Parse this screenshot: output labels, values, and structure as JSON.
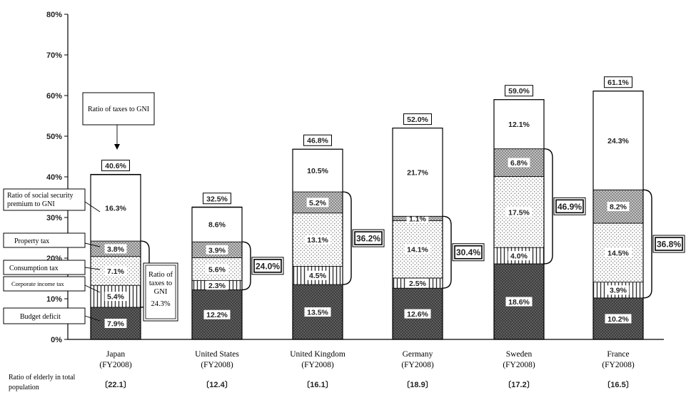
{
  "chart_data": {
    "type": "bar",
    "stacked": true,
    "y_ticks": [
      "0%",
      "10%",
      "20%",
      "30%",
      "40%",
      "50%",
      "60%",
      "70%",
      "80%"
    ],
    "ylim": [
      0,
      80
    ],
    "grid": false,
    "categories": [
      {
        "name": "Japan",
        "fy": "(FY2008)",
        "elderly": "〔22.1〕",
        "total": 40.6,
        "total_label": "40.6%",
        "tax_ratio": 24.3,
        "tax_label": "",
        "values": [
          7.9,
          5.4,
          7.1,
          3.8,
          16.3
        ]
      },
      {
        "name": "United States",
        "fy": "(FY2008)",
        "elderly": "〔12.4〕",
        "total": 32.5,
        "total_label": "32.5%",
        "tax_ratio": 24.0,
        "tax_label": "24.0%",
        "values": [
          12.2,
          2.3,
          5.6,
          3.9,
          8.6
        ]
      },
      {
        "name": "United Kingdom",
        "fy": "(FY2008)",
        "elderly": "〔16.1〕",
        "total": 46.8,
        "total_label": "46.8%",
        "tax_ratio": 36.2,
        "tax_label": "36.2%",
        "values": [
          13.5,
          4.5,
          13.1,
          5.2,
          10.5
        ]
      },
      {
        "name": "Germany",
        "fy": "(FY2008)",
        "elderly": "〔18.9〕",
        "total": 52.0,
        "total_label": "52.0%",
        "tax_ratio": 30.4,
        "tax_label": "30.4%",
        "values": [
          12.6,
          2.5,
          14.1,
          1.1,
          21.7
        ]
      },
      {
        "name": "Sweden",
        "fy": "(FY2008)",
        "elderly": "〔17.2〕",
        "total": 59.0,
        "total_label": "59.0%",
        "tax_ratio": 46.9,
        "tax_label": "46.9%",
        "values": [
          18.6,
          4.0,
          17.5,
          6.8,
          12.1
        ]
      },
      {
        "name": "France",
        "fy": "(FY2008)",
        "elderly": "〔16.5〕",
        "total": 61.1,
        "total_label": "61.1%",
        "tax_ratio": 36.8,
        "tax_label": "36.8%",
        "values": [
          10.2,
          3.9,
          14.5,
          8.2,
          24.3
        ]
      }
    ],
    "series": [
      {
        "name": "Budget deficit",
        "pattern": "crosshatch-dark"
      },
      {
        "name": "Corporate income tax",
        "pattern": "vertical-lines"
      },
      {
        "name": "Consumption tax",
        "pattern": "dots"
      },
      {
        "name": "Property tax",
        "pattern": "crosshatch-light"
      },
      {
        "name": "Ratio of social security premium to GNI",
        "pattern": "white"
      }
    ],
    "legend": {
      "social_security": [
        "Ratio of social security",
        "premium to GNI"
      ],
      "property": "Property tax",
      "consumption": "Consumption tax",
      "corporate": "Corporate income tax",
      "deficit": "Budget deficit"
    },
    "annotations": {
      "ratio_taxes_gni": "Ratio of taxes to GNI",
      "japan_tax_callout": [
        "Ratio of",
        "taxes to",
        "GNI",
        "24.3%"
      ]
    },
    "elderly_label": [
      "Ratio of elderly in total",
      "population"
    ]
  }
}
